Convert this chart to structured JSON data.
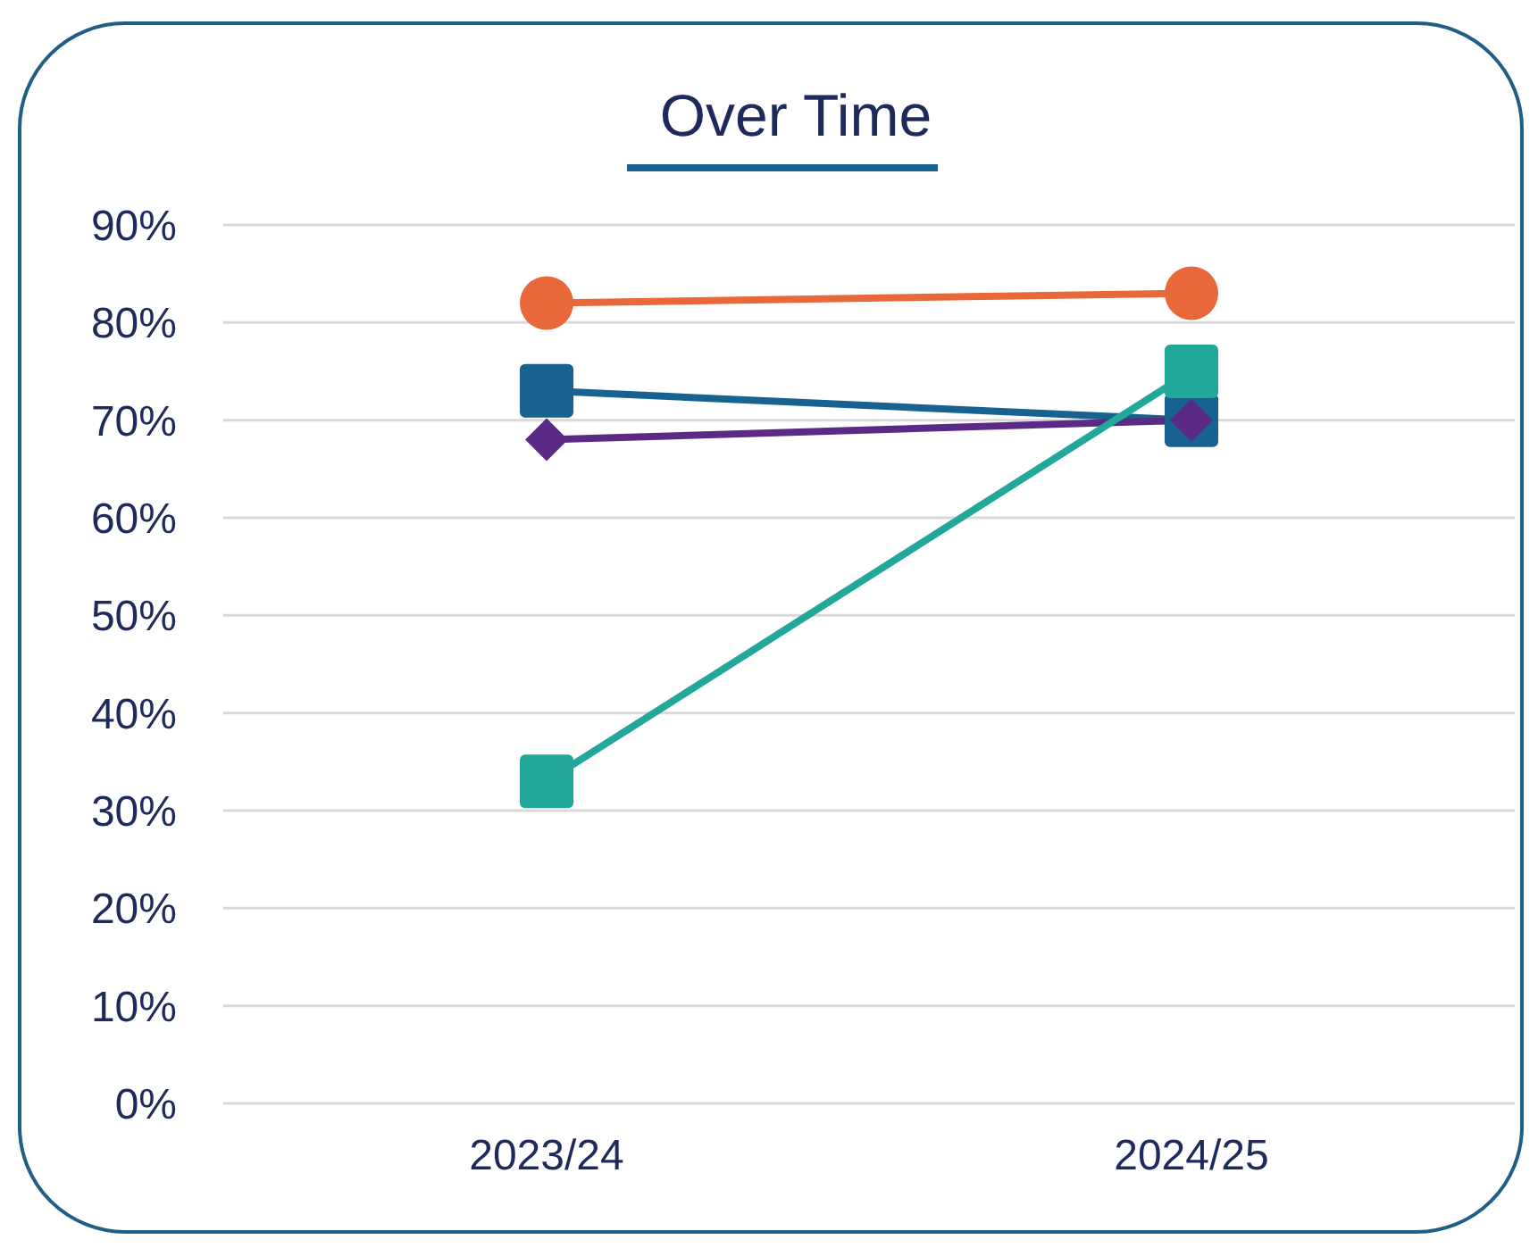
{
  "chart_data": {
    "type": "line",
    "title": "Over Time",
    "categories": [
      "2023/24",
      "2024/25"
    ],
    "series": [
      {
        "color": "#e8683a",
        "marker": "circle",
        "values": [
          82,
          83
        ]
      },
      {
        "color": "#17628f",
        "marker": "square",
        "values": [
          73,
          70
        ]
      },
      {
        "color": "#5b2a86",
        "marker": "diamond",
        "values": [
          68,
          70
        ]
      },
      {
        "color": "#22a89a",
        "marker": "square",
        "values": [
          33,
          75
        ]
      }
    ],
    "ylim": [
      0,
      90
    ],
    "yticks": [
      {
        "value": 0,
        "label": "0%"
      },
      {
        "value": 10,
        "label": "10%"
      },
      {
        "value": 20,
        "label": "20%"
      },
      {
        "value": 30,
        "label": "30%"
      },
      {
        "value": 40,
        "label": "40%"
      },
      {
        "value": 50,
        "label": "50%"
      },
      {
        "value": 60,
        "label": "60%"
      },
      {
        "value": 70,
        "label": "70%"
      },
      {
        "value": 80,
        "label": "80%"
      },
      {
        "value": 90,
        "label": "90%"
      }
    ],
    "grid": "y",
    "legend": false
  }
}
